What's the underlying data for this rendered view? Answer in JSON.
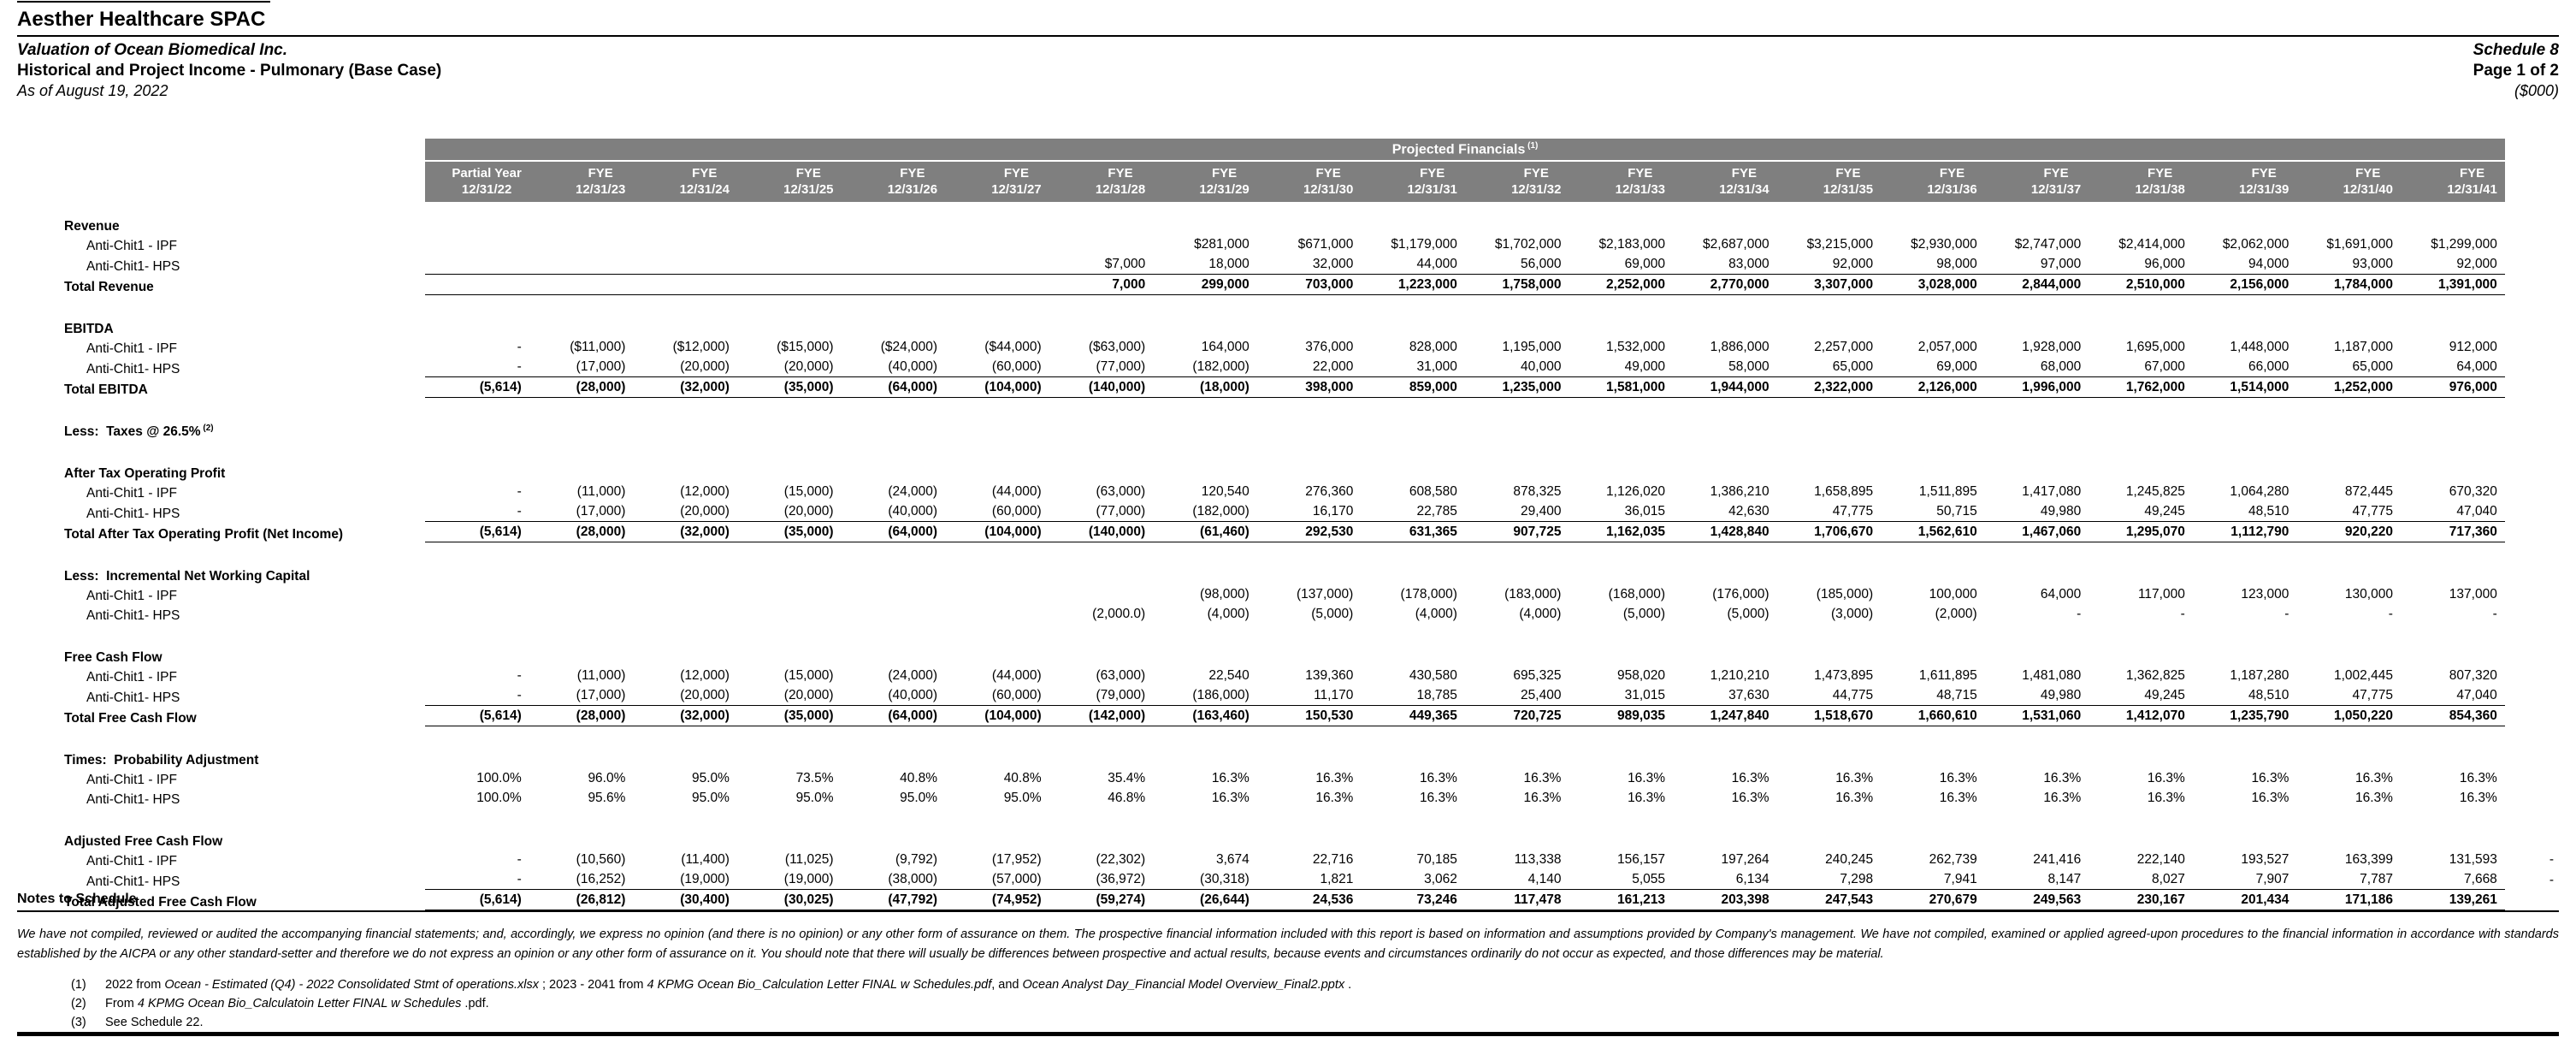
{
  "header": {
    "company": "Aesther Healthcare SPAC",
    "valuation": "Valuation of Ocean Biomedical Inc.",
    "statement": "Historical and Project Income - Pulmonary (Base Case)",
    "as_of": "As of August 19, 2022",
    "schedule": "Schedule 8",
    "page": "Page 1 of 2",
    "units": "($000)"
  },
  "table": {
    "band_title": "Projected Financials",
    "band_note": "(1)",
    "colors": {
      "band_bg": "#7f7f7f",
      "band_text": "#ffffff"
    },
    "columns": [
      {
        "l1": "Partial Year",
        "l2": "12/31/22"
      },
      {
        "l1": "FYE",
        "l2": "12/31/23"
      },
      {
        "l1": "FYE",
        "l2": "12/31/24"
      },
      {
        "l1": "FYE",
        "l2": "12/31/25"
      },
      {
        "l1": "FYE",
        "l2": "12/31/26"
      },
      {
        "l1": "FYE",
        "l2": "12/31/27"
      },
      {
        "l1": "FYE",
        "l2": "12/31/28"
      },
      {
        "l1": "FYE",
        "l2": "12/31/29"
      },
      {
        "l1": "FYE",
        "l2": "12/31/30"
      },
      {
        "l1": "FYE",
        "l2": "12/31/31"
      },
      {
        "l1": "FYE",
        "l2": "12/31/32"
      },
      {
        "l1": "FYE",
        "l2": "12/31/33"
      },
      {
        "l1": "FYE",
        "l2": "12/31/34"
      },
      {
        "l1": "FYE",
        "l2": "12/31/35"
      },
      {
        "l1": "FYE",
        "l2": "12/31/36"
      },
      {
        "l1": "FYE",
        "l2": "12/31/37"
      },
      {
        "l1": "FYE",
        "l2": "12/31/38"
      },
      {
        "l1": "FYE",
        "l2": "12/31/39"
      },
      {
        "l1": "FYE",
        "l2": "12/31/40"
      },
      {
        "l1": "FYE",
        "l2": "12/31/41"
      }
    ],
    "sections": [
      {
        "title": "Revenue",
        "rows": [
          {
            "label": "Anti-Chit1 - IPF",
            "values": [
              "",
              "",
              "",
              "",
              "",
              "",
              "",
              "$281,000",
              "$671,000",
              "$1,179,000",
              "$1,702,000",
              "$2,183,000",
              "$2,687,000",
              "$3,215,000",
              "$2,930,000",
              "$2,747,000",
              "$2,414,000",
              "$2,062,000",
              "$1,691,000",
              "$1,299,000"
            ]
          },
          {
            "label": "Anti-Chit1- HPS",
            "values": [
              "",
              "",
              "",
              "",
              "",
              "",
              "$7,000",
              "18,000",
              "32,000",
              "44,000",
              "56,000",
              "69,000",
              "83,000",
              "92,000",
              "98,000",
              "97,000",
              "96,000",
              "94,000",
              "93,000",
              "92,000"
            ]
          },
          {
            "label": "Total Revenue",
            "total": true,
            "values": [
              "",
              "",
              "",
              "",
              "",
              "",
              "7,000",
              "299,000",
              "703,000",
              "1,223,000",
              "1,758,000",
              "2,252,000",
              "2,770,000",
              "3,307,000",
              "3,028,000",
              "2,844,000",
              "2,510,000",
              "2,156,000",
              "1,784,000",
              "1,391,000"
            ]
          }
        ]
      },
      {
        "title": "EBITDA",
        "rows": [
          {
            "label": "Anti-Chit1 - IPF",
            "values": [
              "-",
              "($11,000)",
              "($12,000)",
              "($15,000)",
              "($24,000)",
              "($44,000)",
              "($63,000)",
              "164,000",
              "376,000",
              "828,000",
              "1,195,000",
              "1,532,000",
              "1,886,000",
              "2,257,000",
              "2,057,000",
              "1,928,000",
              "1,695,000",
              "1,448,000",
              "1,187,000",
              "912,000"
            ]
          },
          {
            "label": "Anti-Chit1- HPS",
            "values": [
              "-",
              "(17,000)",
              "(20,000)",
              "(20,000)",
              "(40,000)",
              "(60,000)",
              "(77,000)",
              "(182,000)",
              "22,000",
              "31,000",
              "40,000",
              "49,000",
              "58,000",
              "65,000",
              "69,000",
              "68,000",
              "67,000",
              "66,000",
              "65,000",
              "64,000"
            ]
          },
          {
            "label": "Total EBITDA",
            "total": true,
            "values": [
              "(5,614)",
              "(28,000)",
              "(32,000)",
              "(35,000)",
              "(64,000)",
              "(104,000)",
              "(140,000)",
              "(18,000)",
              "398,000",
              "859,000",
              "1,235,000",
              "1,581,000",
              "1,944,000",
              "2,322,000",
              "2,126,000",
              "1,996,000",
              "1,762,000",
              "1,514,000",
              "1,252,000",
              "976,000"
            ]
          }
        ]
      },
      {
        "title": "Less:  Taxes @ 26.5%",
        "title_note": "(2)",
        "rows": []
      },
      {
        "title": "After Tax Operating Profit",
        "rows": [
          {
            "label": "Anti-Chit1 - IPF",
            "values": [
              "-",
              "(11,000)",
              "(12,000)",
              "(15,000)",
              "(24,000)",
              "(44,000)",
              "(63,000)",
              "120,540",
              "276,360",
              "608,580",
              "878,325",
              "1,126,020",
              "1,386,210",
              "1,658,895",
              "1,511,895",
              "1,417,080",
              "1,245,825",
              "1,064,280",
              "872,445",
              "670,320"
            ]
          },
          {
            "label": "Anti-Chit1- HPS",
            "values": [
              "-",
              "(17,000)",
              "(20,000)",
              "(20,000)",
              "(40,000)",
              "(60,000)",
              "(77,000)",
              "(182,000)",
              "16,170",
              "22,785",
              "29,400",
              "36,015",
              "42,630",
              "47,775",
              "50,715",
              "49,980",
              "49,245",
              "48,510",
              "47,775",
              "47,040"
            ]
          },
          {
            "label": "Total After Tax Operating Profit (Net Income)",
            "total": true,
            "values": [
              "(5,614)",
              "(28,000)",
              "(32,000)",
              "(35,000)",
              "(64,000)",
              "(104,000)",
              "(140,000)",
              "(61,460)",
              "292,530",
              "631,365",
              "907,725",
              "1,162,035",
              "1,428,840",
              "1,706,670",
              "1,562,610",
              "1,467,060",
              "1,295,070",
              "1,112,790",
              "920,220",
              "717,360"
            ]
          }
        ]
      },
      {
        "title": "Less:  Incremental Net Working Capital",
        "rows": [
          {
            "label": "Anti-Chit1 - IPF",
            "values": [
              "",
              "",
              "",
              "",
              "",
              "",
              "",
              "(98,000)",
              "(137,000)",
              "(178,000)",
              "(183,000)",
              "(168,000)",
              "(176,000)",
              "(185,000)",
              "100,000",
              "64,000",
              "117,000",
              "123,000",
              "130,000",
              "137,000"
            ]
          },
          {
            "label": "Anti-Chit1- HPS",
            "values": [
              "",
              "",
              "",
              "",
              "",
              "",
              "(2,000.0)",
              "(4,000)",
              "(5,000)",
              "(4,000)",
              "(4,000)",
              "(5,000)",
              "(5,000)",
              "(3,000)",
              "(2,000)",
              "-",
              "-",
              "-",
              "-",
              "-"
            ]
          }
        ]
      },
      {
        "title": "Free Cash Flow",
        "rows": [
          {
            "label": "Anti-Chit1 - IPF",
            "values": [
              "-",
              "(11,000)",
              "(12,000)",
              "(15,000)",
              "(24,000)",
              "(44,000)",
              "(63,000)",
              "22,540",
              "139,360",
              "430,580",
              "695,325",
              "958,020",
              "1,210,210",
              "1,473,895",
              "1,611,895",
              "1,481,080",
              "1,362,825",
              "1,187,280",
              "1,002,445",
              "807,320"
            ]
          },
          {
            "label": "Anti-Chit1- HPS",
            "values": [
              "-",
              "(17,000)",
              "(20,000)",
              "(20,000)",
              "(40,000)",
              "(60,000)",
              "(79,000)",
              "(186,000)",
              "11,170",
              "18,785",
              "25,400",
              "31,015",
              "37,630",
              "44,775",
              "48,715",
              "49,980",
              "49,245",
              "48,510",
              "47,775",
              "47,040"
            ]
          },
          {
            "label": "Total Free Cash Flow",
            "total": true,
            "values": [
              "(5,614)",
              "(28,000)",
              "(32,000)",
              "(35,000)",
              "(64,000)",
              "(104,000)",
              "(142,000)",
              "(163,460)",
              "150,530",
              "449,365",
              "720,725",
              "989,035",
              "1,247,840",
              "1,518,670",
              "1,660,610",
              "1,531,060",
              "1,412,070",
              "1,235,790",
              "1,050,220",
              "854,360"
            ]
          }
        ]
      },
      {
        "title": "Times:  Probability Adjustment",
        "rows": [
          {
            "label": "Anti-Chit1 - IPF",
            "values": [
              "100.0%",
              "96.0%",
              "95.0%",
              "73.5%",
              "40.8%",
              "40.8%",
              "35.4%",
              "16.3%",
              "16.3%",
              "16.3%",
              "16.3%",
              "16.3%",
              "16.3%",
              "16.3%",
              "16.3%",
              "16.3%",
              "16.3%",
              "16.3%",
              "16.3%",
              "16.3%"
            ]
          },
          {
            "label": "Anti-Chit1- HPS",
            "values": [
              "100.0%",
              "95.6%",
              "95.0%",
              "95.0%",
              "95.0%",
              "95.0%",
              "46.8%",
              "16.3%",
              "16.3%",
              "16.3%",
              "16.3%",
              "16.3%",
              "16.3%",
              "16.3%",
              "16.3%",
              "16.3%",
              "16.3%",
              "16.3%",
              "16.3%",
              "16.3%"
            ]
          }
        ]
      },
      {
        "title": "Adjusted Free Cash Flow",
        "rows": [
          {
            "label": "Anti-Chit1 - IPF",
            "stub": "-",
            "values": [
              "-",
              "(10,560)",
              "(11,400)",
              "(11,025)",
              "(9,792)",
              "(17,952)",
              "(22,302)",
              "3,674",
              "22,716",
              "70,185",
              "113,338",
              "156,157",
              "197,264",
              "240,245",
              "262,739",
              "241,416",
              "222,140",
              "193,527",
              "163,399",
              "131,593"
            ]
          },
          {
            "label": "Anti-Chit1- HPS",
            "stub": "-",
            "values": [
              "-",
              "(16,252)",
              "(19,000)",
              "(19,000)",
              "(38,000)",
              "(57,000)",
              "(36,972)",
              "(30,318)",
              "1,821",
              "3,062",
              "4,140",
              "5,055",
              "6,134",
              "7,298",
              "7,941",
              "8,147",
              "8,027",
              "7,907",
              "7,787",
              "7,668"
            ]
          },
          {
            "label": "Total Adjusted Free Cash Flow",
            "total": true,
            "values": [
              "(5,614)",
              "(26,812)",
              "(30,400)",
              "(30,025)",
              "(47,792)",
              "(74,952)",
              "(59,274)",
              "(26,644)",
              "24,536",
              "73,246",
              "117,478",
              "161,213",
              "203,398",
              "247,543",
              "270,679",
              "249,563",
              "230,167",
              "201,434",
              "171,186",
              "139,261"
            ]
          }
        ]
      }
    ]
  },
  "notes": {
    "title": "Notes to Schedule",
    "disclaimer": "We have not compiled, reviewed or audited the accompanying financial statements; and, accordingly, we express no opinion (and there is no opinion) or any other form of assurance on them.  The prospective financial information included with this report is based on information and assumptions provided by Company's management.  We have not compiled, examined or applied agreed-upon procedures to the financial information in accordance with standards established by the AICPA or any other standard-setter and therefore we do not express an opinion or any other form of assurance on it.  You should note that there will usually be differences between prospective and actual results, because events and circumstances ordinarily do not occur as expected, and those differences may be material."
  },
  "footnotes": [
    {
      "number": "(1)",
      "segments": [
        {
          "text": "2022 from ",
          "italic": false
        },
        {
          "text": "Ocean - Estimated (Q4) - 2022 Consolidated Stmt of operations.xlsx",
          "italic": true
        },
        {
          "text": " ; 2023 - 2041 from ",
          "italic": false
        },
        {
          "text": "4 KPMG Ocean Bio_Calculation Letter FINAL w Schedules.pdf",
          "italic": true
        },
        {
          "text": ", and ",
          "italic": false
        },
        {
          "text": "Ocean Analyst Day_Financial Model Overview_Final2.pptx",
          "italic": true
        },
        {
          "text": " .",
          "italic": false
        }
      ]
    },
    {
      "number": "(2)",
      "segments": [
        {
          "text": "From ",
          "italic": false
        },
        {
          "text": "4 KPMG Ocean Bio_Calculatoin Letter FINAL w Schedules",
          "italic": true
        },
        {
          "text": " .pdf.",
          "italic": false
        }
      ]
    },
    {
      "number": "(3)",
      "segments": [
        {
          "text": "See Schedule 22.",
          "italic": false
        }
      ]
    }
  ]
}
